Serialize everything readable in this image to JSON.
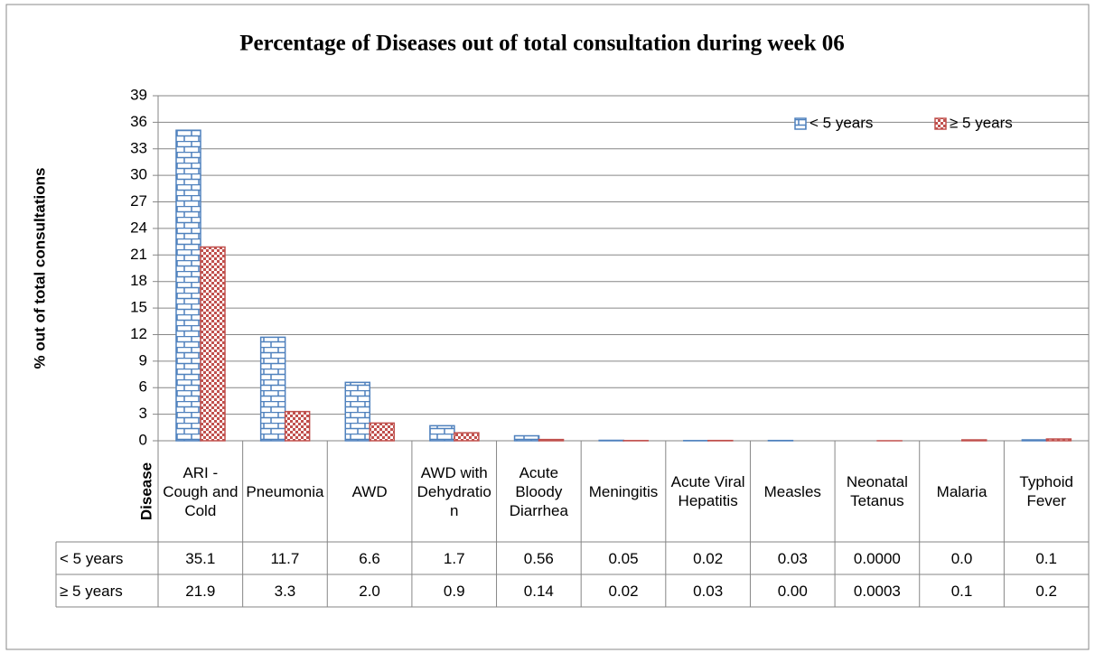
{
  "chart_data": {
    "type": "bar",
    "title": "Percentage of Diseases out of total consultation during week 06",
    "y_label": "% out of total consultations",
    "x_label": "Disease",
    "categories": [
      "ARI - Cough and Cold",
      "Pneumonia",
      "AWD",
      "AWD with Dehydration",
      "Acute Bloody Diarrhea",
      "Meningitis",
      "Acute Viral Hepatitis",
      "Measles",
      "Neonatal Tetanus",
      "Malaria",
      "Typhoid Fever"
    ],
    "series": [
      {
        "name": "< 5 years",
        "color": "#4f81bd",
        "values": [
          35.1,
          11.7,
          6.6,
          1.7,
          0.56,
          0.05,
          0.02,
          0.03,
          0,
          0,
          0.1
        ],
        "value_labels": [
          "35.1",
          "11.7",
          "6.6",
          "1.7",
          "0.56",
          "0.05",
          "0.02",
          "0.03",
          "0.0000",
          "0.0",
          "0.1"
        ]
      },
      {
        "name": "≥ 5 years",
        "color": "#c0504d",
        "values": [
          21.9,
          3.3,
          2,
          0.9,
          0.14,
          0.02,
          0.03,
          0,
          0.0003,
          0.1,
          0.2
        ],
        "value_labels": [
          "21.9",
          "3.3",
          "2.0",
          "0.9",
          "0.14",
          "0.02",
          "0.03",
          "0.00",
          "0.0003",
          "0.1",
          "0.2"
        ]
      }
    ],
    "ylim": [
      0,
      39
    ],
    "yticks": [
      0,
      3,
      6,
      9,
      12,
      15,
      18,
      21,
      24,
      27,
      30,
      33,
      36,
      39
    ],
    "grid": true,
    "legend": "upper right"
  }
}
